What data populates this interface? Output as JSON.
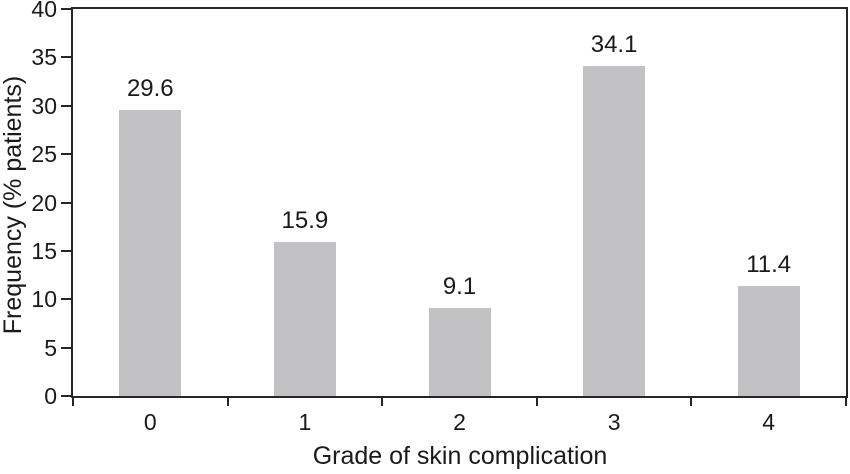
{
  "figure": {
    "background": "#ffffff"
  },
  "chart_data": {
    "type": "bar",
    "title": "",
    "categories": [
      "0",
      "1",
      "2",
      "3",
      "4"
    ],
    "values": [
      29.6,
      15.9,
      9.1,
      34.1,
      11.4
    ],
    "data_labels": [
      "29.6",
      "15.9",
      "9.1",
      "34.1",
      "11.4"
    ],
    "xlabel": "Grade of skin complication",
    "ylabel": "Frequency (% patients)",
    "ylim": [
      0,
      40
    ],
    "yticks": [
      0,
      5,
      10,
      15,
      20,
      25,
      30,
      35,
      40
    ],
    "xtick_style": "boundary",
    "grid": false,
    "legend": "none",
    "bar_color": "#c2c2c4",
    "axis_color": "#262626",
    "text_color": "#1a1a1a",
    "background": "#ffffff"
  }
}
